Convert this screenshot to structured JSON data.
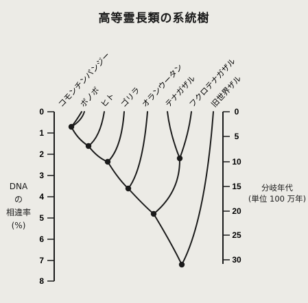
{
  "title": "高等霊長類の系統樹",
  "left_axis": {
    "label_lines": [
      "DNA",
      "の",
      "相違率",
      "(%)"
    ],
    "ticks": [
      "0",
      "1",
      "2",
      "3",
      "4",
      "5",
      "6",
      "7",
      "8"
    ]
  },
  "right_axis": {
    "label_lines": [
      "分岐年代",
      "(単位 100 万年)"
    ],
    "ticks": [
      "0",
      "5",
      "10",
      "15",
      "20",
      "25",
      "30"
    ]
  },
  "taxa": [
    "コモンチンパンジー",
    "ボノボ",
    "ヒト",
    "ゴリラ",
    "オランウータン",
    "テナガザル",
    "フクロテナガザル",
    "旧世界ザル"
  ],
  "nodes": [
    {
      "id": "chimp-bonobo",
      "dna_difference_pct": 0.7
    },
    {
      "id": "human",
      "dna_difference_pct": 1.6
    },
    {
      "id": "gorilla",
      "dna_difference_pct": 2.3
    },
    {
      "id": "gibbons",
      "dna_difference_pct": 2.2
    },
    {
      "id": "orangutan",
      "dna_difference_pct": 3.6
    },
    {
      "id": "lesser-apes",
      "dna_difference_pct": 4.7
    },
    {
      "id": "old-world-monkeys",
      "dna_difference_pct": 7.3
    }
  ]
}
